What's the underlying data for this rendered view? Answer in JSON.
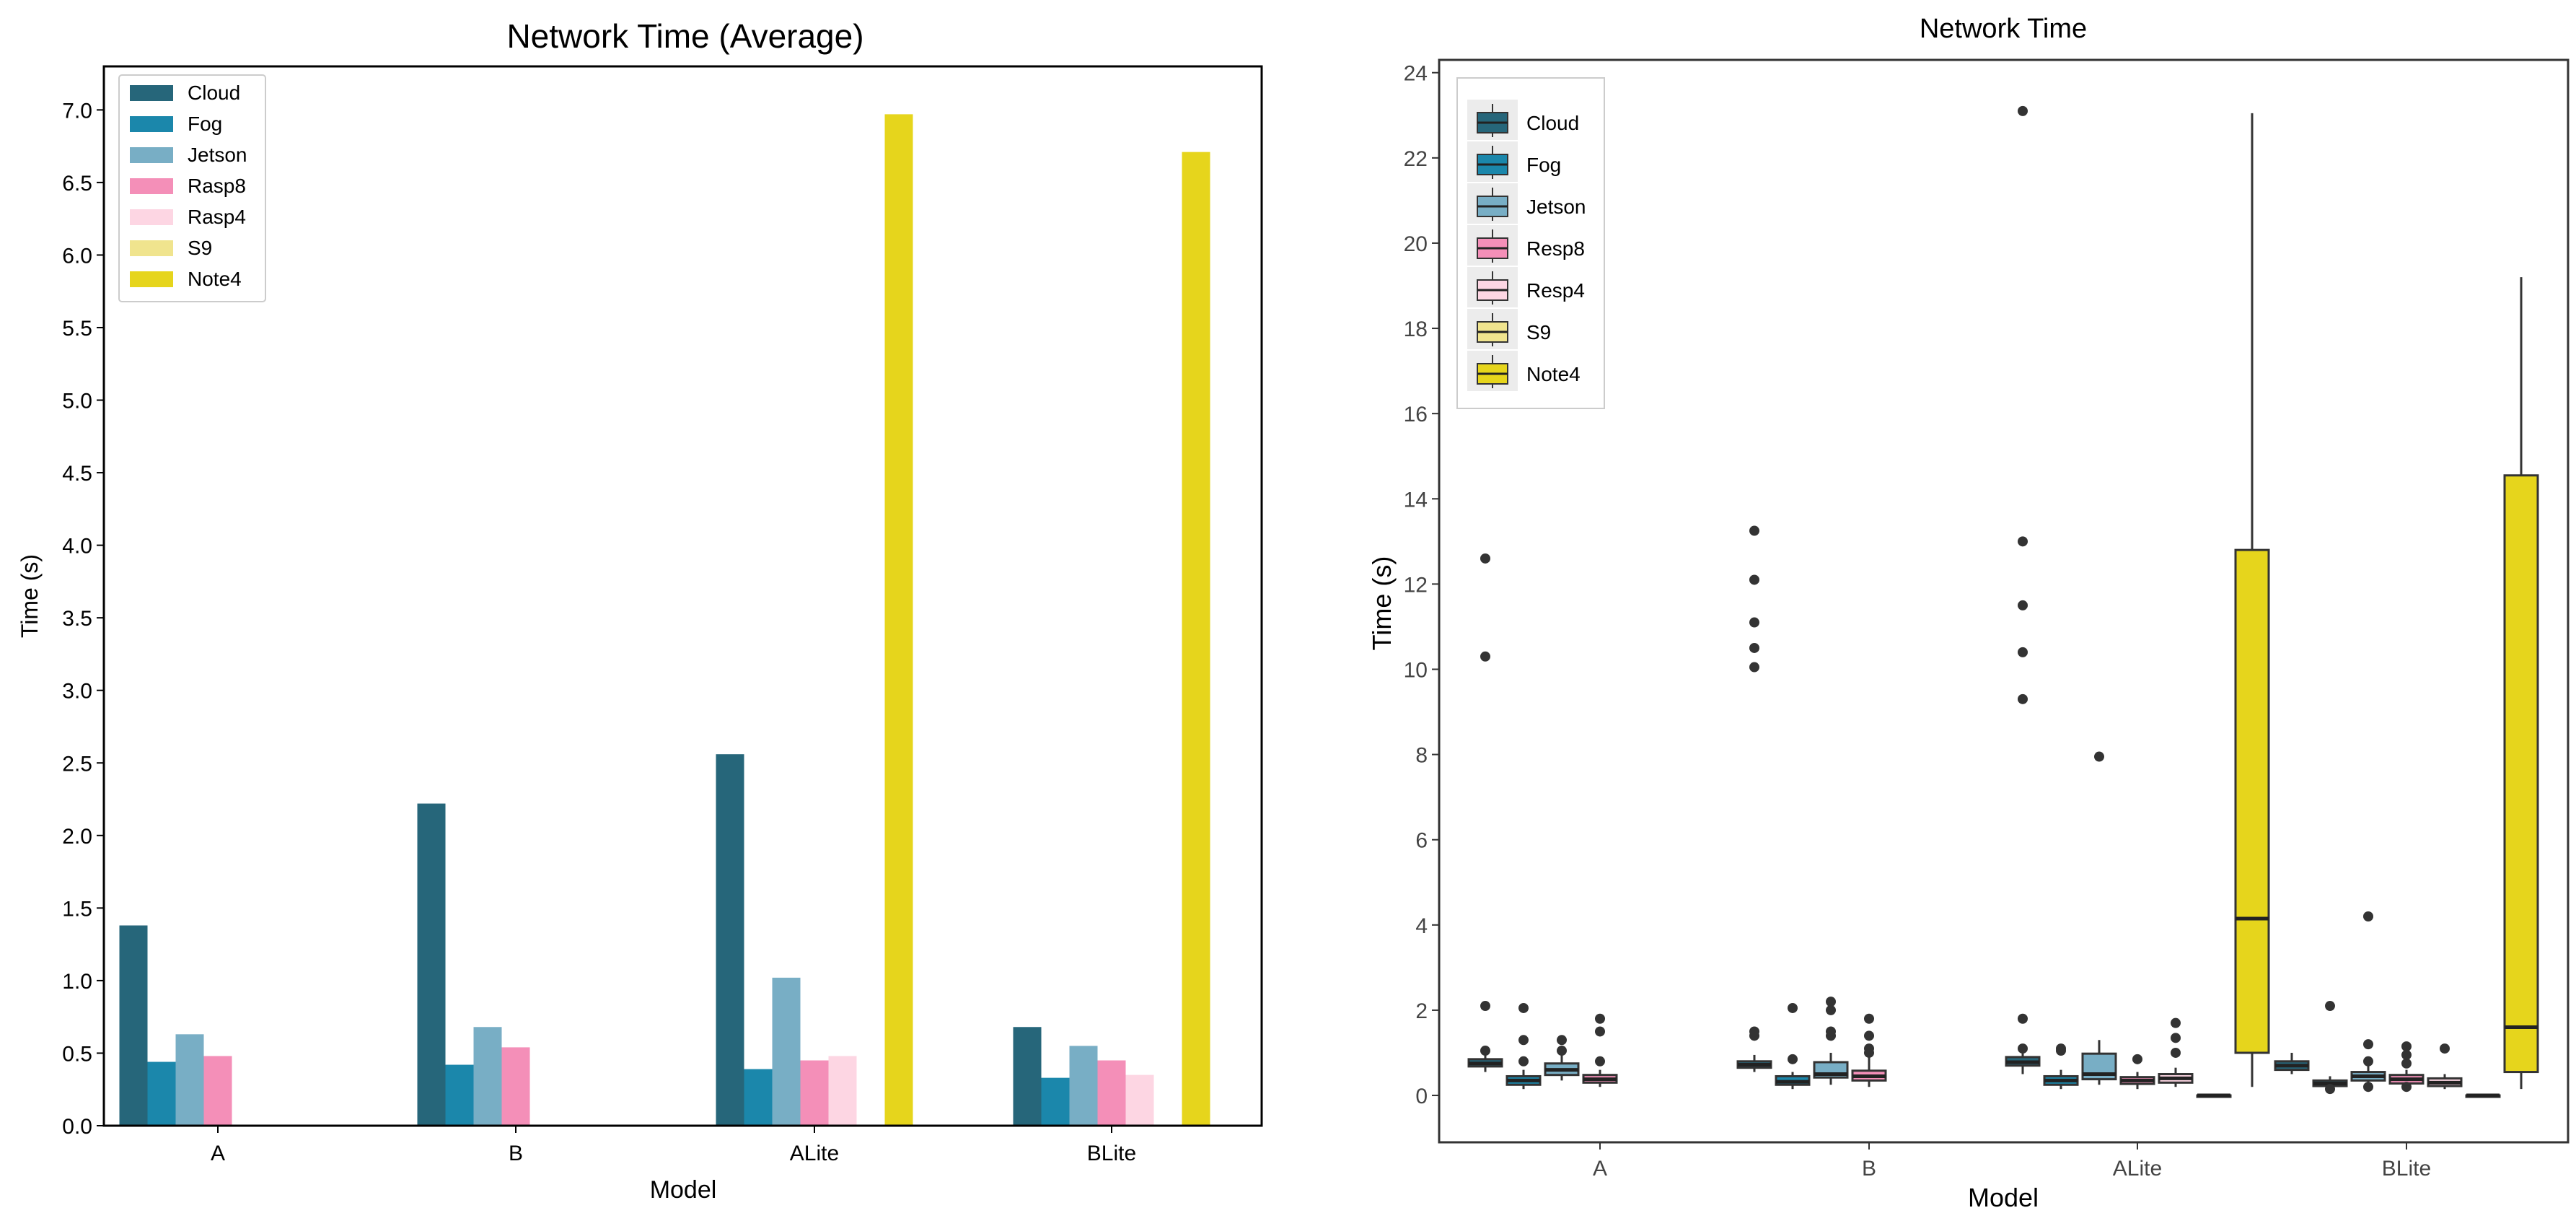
{
  "chart_data": [
    {
      "type": "bar",
      "title": "Network Time (Average)",
      "xlabel": "Model",
      "ylabel": "Time (s)",
      "ylim": [
        0,
        7.3
      ],
      "yticks": [
        "0.0",
        "0.5",
        "1.0",
        "1.5",
        "2.0",
        "2.5",
        "3.0",
        "3.5",
        "4.0",
        "4.5",
        "5.0",
        "5.5",
        "6.0",
        "6.5",
        "7.0"
      ],
      "categories": [
        "A",
        "B",
        "ALite",
        "BLite"
      ],
      "legend_position": "top-left",
      "grid": false,
      "series": [
        {
          "name": "Cloud",
          "color": "#26667a",
          "values": [
            1.38,
            2.22,
            2.56,
            0.68
          ]
        },
        {
          "name": "Fog",
          "color": "#1b87ab",
          "values": [
            0.44,
            0.42,
            0.39,
            0.33
          ]
        },
        {
          "name": "Jetson",
          "color": "#78aec5",
          "values": [
            0.63,
            0.68,
            1.02,
            0.55
          ]
        },
        {
          "name": "Rasp8",
          "color": "#f48fb8",
          "values": [
            0.48,
            0.54,
            0.45,
            0.45
          ]
        },
        {
          "name": "Rasp4",
          "color": "#fdd6e3",
          "values": [
            0,
            0,
            0.48,
            0.35
          ]
        },
        {
          "name": "S9",
          "color": "#f0e48e",
          "values": [
            0,
            0,
            0,
            0
          ]
        },
        {
          "name": "Note4",
          "color": "#e6d51c",
          "values": [
            0,
            0,
            6.97,
            6.71
          ]
        }
      ]
    },
    {
      "type": "box",
      "title": "Network Time",
      "xlabel": "Model",
      "ylabel": "Time (s)",
      "ylim": [
        -1.1,
        24.3
      ],
      "yticks": [
        "0",
        "2",
        "4",
        "6",
        "8",
        "10",
        "12",
        "14",
        "16",
        "18",
        "20",
        "22",
        "24"
      ],
      "categories": [
        "A",
        "B",
        "ALite",
        "BLite"
      ],
      "legend_position": "top-left",
      "grid": false,
      "series": [
        {
          "name": "Cloud",
          "color": "#26667a",
          "boxes": [
            {
              "q1": 0.68,
              "median": 0.75,
              "q3": 0.85,
              "lo": 0.55,
              "hi": 1.0,
              "out": [
                2.1,
                10.3,
                12.6,
                1.05
              ]
            },
            {
              "q1": 0.65,
              "median": 0.72,
              "q3": 0.8,
              "lo": 0.55,
              "hi": 0.95,
              "out": [
                1.4,
                1.5,
                10.05,
                10.5,
                11.1,
                12.1,
                13.25
              ]
            },
            {
              "q1": 0.7,
              "median": 0.78,
              "q3": 0.9,
              "lo": 0.5,
              "hi": 1.0,
              "out": [
                1.8,
                9.3,
                10.4,
                11.5,
                13.0,
                23.1,
                1.1
              ]
            },
            {
              "q1": 0.6,
              "median": 0.7,
              "q3": 0.8,
              "lo": 0.5,
              "hi": 1.0,
              "out": []
            }
          ]
        },
        {
          "name": "Fog",
          "color": "#1b87ab",
          "boxes": [
            {
              "q1": 0.25,
              "median": 0.35,
              "q3": 0.45,
              "lo": 0.15,
              "hi": 0.6,
              "out": [
                0.8,
                1.3,
                2.05
              ]
            },
            {
              "q1": 0.25,
              "median": 0.32,
              "q3": 0.45,
              "lo": 0.15,
              "hi": 0.55,
              "out": [
                0.85,
                2.05
              ]
            },
            {
              "q1": 0.25,
              "median": 0.35,
              "q3": 0.45,
              "lo": 0.15,
              "hi": 0.6,
              "out": [
                1.05,
                1.1
              ]
            },
            {
              "q1": 0.22,
              "median": 0.28,
              "q3": 0.35,
              "lo": 0.15,
              "hi": 0.45,
              "out": [
                0.15,
                2.1
              ]
            }
          ]
        },
        {
          "name": "Jetson",
          "color": "#78aec5",
          "boxes": [
            {
              "q1": 0.48,
              "median": 0.6,
              "q3": 0.75,
              "lo": 0.35,
              "hi": 0.95,
              "out": [
                1.05,
                1.3
              ]
            },
            {
              "q1": 0.42,
              "median": 0.5,
              "q3": 0.78,
              "lo": 0.25,
              "hi": 1.0,
              "out": [
                1.4,
                1.5,
                2.0,
                2.2
              ]
            },
            {
              "q1": 0.38,
              "median": 0.5,
              "q3": 0.98,
              "lo": 0.25,
              "hi": 1.3,
              "out": [
                7.95
              ]
            },
            {
              "q1": 0.35,
              "median": 0.45,
              "q3": 0.55,
              "lo": 0.2,
              "hi": 0.7,
              "out": [
                0.2,
                0.8,
                1.2,
                4.2
              ]
            }
          ]
        },
        {
          "name": "Resp8",
          "color": "#f48fb8",
          "boxes": [
            {
              "q1": 0.3,
              "median": 0.38,
              "q3": 0.48,
              "lo": 0.2,
              "hi": 0.6,
              "out": [
                0.8,
                1.5,
                1.8
              ]
            },
            {
              "q1": 0.35,
              "median": 0.45,
              "q3": 0.58,
              "lo": 0.2,
              "hi": 0.9,
              "out": [
                1.0,
                1.1,
                1.4,
                1.8
              ]
            },
            {
              "q1": 0.27,
              "median": 0.35,
              "q3": 0.43,
              "lo": 0.15,
              "hi": 0.55,
              "out": [
                0.85
              ]
            },
            {
              "q1": 0.28,
              "median": 0.38,
              "q3": 0.48,
              "lo": 0.15,
              "hi": 0.6,
              "out": [
                0.2,
                0.75,
                0.95,
                1.15
              ]
            }
          ]
        },
        {
          "name": "Resp4",
          "color": "#fdd6e3",
          "boxes": [
            null,
            null,
            {
              "q1": 0.3,
              "median": 0.4,
              "q3": 0.5,
              "lo": 0.2,
              "hi": 0.65,
              "out": [
                1.0,
                1.35,
                1.7
              ]
            },
            {
              "q1": 0.22,
              "median": 0.3,
              "q3": 0.4,
              "lo": 0.15,
              "hi": 0.5,
              "out": [
                1.1
              ]
            }
          ]
        },
        {
          "name": "S9",
          "color": "#f0e48e",
          "boxes": [
            null,
            null,
            {
              "q1": 0.0,
              "median": 0.0,
              "q3": 0.0,
              "lo": 0.0,
              "hi": 0.0,
              "out": []
            },
            {
              "q1": 0.0,
              "median": 0.0,
              "q3": 0.0,
              "lo": 0.0,
              "hi": 0.0,
              "out": []
            }
          ]
        },
        {
          "name": "Note4",
          "color": "#e6d51c",
          "boxes": [
            null,
            null,
            {
              "q1": 1.0,
              "median": 4.15,
              "q3": 12.8,
              "lo": 0.2,
              "hi": 23.05,
              "out": []
            },
            {
              "q1": 0.55,
              "median": 1.6,
              "q3": 14.55,
              "lo": 0.15,
              "hi": 19.2,
              "out": []
            }
          ]
        }
      ]
    }
  ]
}
